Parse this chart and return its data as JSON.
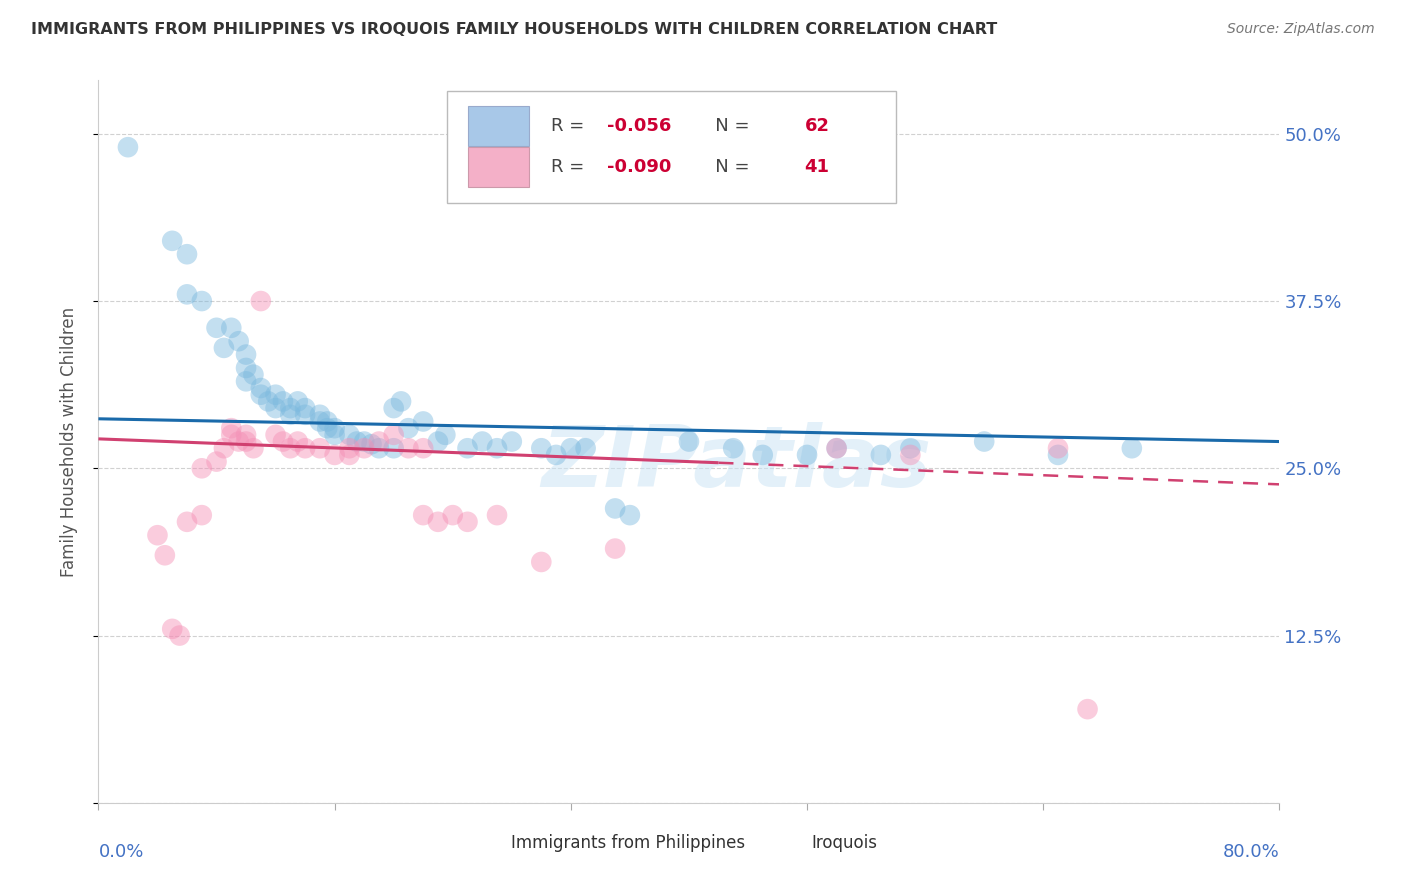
{
  "title": "IMMIGRANTS FROM PHILIPPINES VS IROQUOIS FAMILY HOUSEHOLDS WITH CHILDREN CORRELATION CHART",
  "source": "Source: ZipAtlas.com",
  "ylabel": "Family Households with Children",
  "legend1_r": "-0.056",
  "legend1_n": "62",
  "legend2_r": "-0.090",
  "legend2_n": "41",
  "legend1_color": "#a8c8e8",
  "legend2_color": "#f4b0c8",
  "blue_color": "#7ab8de",
  "pink_color": "#f48fb5",
  "trendline_blue_color": "#1a6aaa",
  "trendline_pink_color": "#d04070",
  "watermark": "ZIPatlas",
  "blue_dots": [
    [
      0.02,
      0.49
    ],
    [
      0.05,
      0.42
    ],
    [
      0.06,
      0.41
    ],
    [
      0.06,
      0.38
    ],
    [
      0.07,
      0.375
    ],
    [
      0.08,
      0.355
    ],
    [
      0.085,
      0.34
    ],
    [
      0.09,
      0.355
    ],
    [
      0.095,
      0.345
    ],
    [
      0.1,
      0.335
    ],
    [
      0.1,
      0.325
    ],
    [
      0.1,
      0.315
    ],
    [
      0.105,
      0.32
    ],
    [
      0.11,
      0.305
    ],
    [
      0.11,
      0.31
    ],
    [
      0.115,
      0.3
    ],
    [
      0.12,
      0.305
    ],
    [
      0.12,
      0.295
    ],
    [
      0.125,
      0.3
    ],
    [
      0.13,
      0.295
    ],
    [
      0.13,
      0.29
    ],
    [
      0.135,
      0.3
    ],
    [
      0.14,
      0.295
    ],
    [
      0.14,
      0.29
    ],
    [
      0.15,
      0.285
    ],
    [
      0.15,
      0.29
    ],
    [
      0.155,
      0.28
    ],
    [
      0.155,
      0.285
    ],
    [
      0.16,
      0.28
    ],
    [
      0.16,
      0.275
    ],
    [
      0.17,
      0.275
    ],
    [
      0.175,
      0.27
    ],
    [
      0.18,
      0.27
    ],
    [
      0.185,
      0.268
    ],
    [
      0.19,
      0.265
    ],
    [
      0.2,
      0.265
    ],
    [
      0.2,
      0.295
    ],
    [
      0.205,
      0.3
    ],
    [
      0.21,
      0.28
    ],
    [
      0.22,
      0.285
    ],
    [
      0.23,
      0.27
    ],
    [
      0.235,
      0.275
    ],
    [
      0.25,
      0.265
    ],
    [
      0.26,
      0.27
    ],
    [
      0.27,
      0.265
    ],
    [
      0.28,
      0.27
    ],
    [
      0.3,
      0.265
    ],
    [
      0.31,
      0.26
    ],
    [
      0.32,
      0.265
    ],
    [
      0.33,
      0.265
    ],
    [
      0.35,
      0.22
    ],
    [
      0.36,
      0.215
    ],
    [
      0.4,
      0.27
    ],
    [
      0.43,
      0.265
    ],
    [
      0.45,
      0.26
    ],
    [
      0.48,
      0.26
    ],
    [
      0.5,
      0.265
    ],
    [
      0.53,
      0.26
    ],
    [
      0.55,
      0.265
    ],
    [
      0.6,
      0.27
    ],
    [
      0.65,
      0.26
    ],
    [
      0.7,
      0.265
    ]
  ],
  "pink_dots": [
    [
      0.04,
      0.2
    ],
    [
      0.045,
      0.185
    ],
    [
      0.05,
      0.13
    ],
    [
      0.055,
      0.125
    ],
    [
      0.06,
      0.21
    ],
    [
      0.07,
      0.215
    ],
    [
      0.07,
      0.25
    ],
    [
      0.08,
      0.255
    ],
    [
      0.085,
      0.265
    ],
    [
      0.09,
      0.275
    ],
    [
      0.09,
      0.28
    ],
    [
      0.095,
      0.27
    ],
    [
      0.1,
      0.275
    ],
    [
      0.1,
      0.27
    ],
    [
      0.105,
      0.265
    ],
    [
      0.11,
      0.375
    ],
    [
      0.12,
      0.275
    ],
    [
      0.125,
      0.27
    ],
    [
      0.13,
      0.265
    ],
    [
      0.135,
      0.27
    ],
    [
      0.14,
      0.265
    ],
    [
      0.15,
      0.265
    ],
    [
      0.16,
      0.26
    ],
    [
      0.17,
      0.265
    ],
    [
      0.17,
      0.26
    ],
    [
      0.18,
      0.265
    ],
    [
      0.19,
      0.27
    ],
    [
      0.2,
      0.275
    ],
    [
      0.21,
      0.265
    ],
    [
      0.22,
      0.265
    ],
    [
      0.22,
      0.215
    ],
    [
      0.23,
      0.21
    ],
    [
      0.24,
      0.215
    ],
    [
      0.25,
      0.21
    ],
    [
      0.27,
      0.215
    ],
    [
      0.3,
      0.18
    ],
    [
      0.35,
      0.19
    ],
    [
      0.5,
      0.265
    ],
    [
      0.55,
      0.26
    ],
    [
      0.65,
      0.265
    ],
    [
      0.67,
      0.07
    ]
  ],
  "xlim": [
    0.0,
    0.8
  ],
  "ylim": [
    0.0,
    0.54
  ],
  "yticks": [
    0.0,
    0.125,
    0.25,
    0.375,
    0.5
  ],
  "ytick_labels": [
    "",
    "12.5%",
    "25.0%",
    "37.5%",
    "50.0%"
  ],
  "xtick_positions": [
    0.0,
    0.16,
    0.32,
    0.48,
    0.64,
    0.8
  ],
  "background_color": "#ffffff",
  "grid_color": "#cccccc",
  "title_color": "#333333",
  "axis_label_color": "#4472c4",
  "right_axis_color": "#4472c4"
}
